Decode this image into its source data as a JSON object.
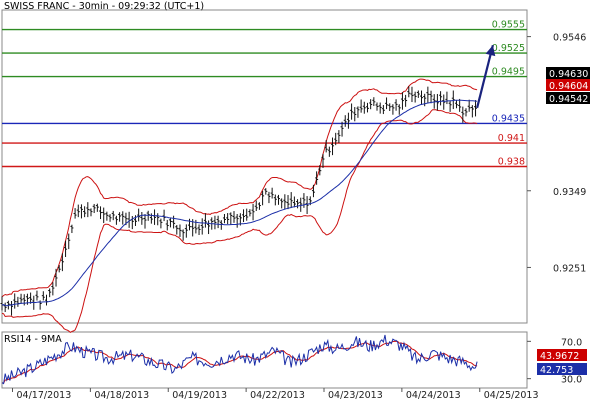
{
  "title": "SWISS FRANC - 30min - 09:29:32 (UTC+1)",
  "colors": {
    "bars": "#111111",
    "ma_blue": "#1c2fa8",
    "bollinger": "#cc1111",
    "resistance": "#2e8b22",
    "support_blue": "#1a27b8",
    "support_red": "#d01818",
    "arrow": "#1a237e",
    "frame": "#888888",
    "price_box_red": "#cc0000",
    "price_box_black": "#000000",
    "rsi_blue": "#1c2fa8",
    "rsi_red": "#cc1111"
  },
  "chart_data": {
    "type": "line",
    "title": "SWISS FRANC - 30min - 09:29:32 (UTC+1)",
    "x_tick_labels": [
      "04/17/2013",
      "04/18/2013",
      "04/19/2013",
      "04/22/2013",
      "04/23/2013",
      "04/24/2013",
      "04/25/2013"
    ],
    "y_tick_labels": [
      "0.9546",
      "0.9349",
      "0.9251"
    ],
    "ylim": [
      0.918,
      0.958
    ],
    "levels": [
      {
        "label": "0.9555",
        "value": 0.9555,
        "color": "#2e8b22"
      },
      {
        "label": "0.9525",
        "value": 0.9525,
        "color": "#2e8b22"
      },
      {
        "label": "0.9495",
        "value": 0.9495,
        "color": "#2e8b22"
      },
      {
        "label": "0.9435",
        "value": 0.9435,
        "color": "#1a27b8"
      },
      {
        "label": "0.941",
        "value": 0.941,
        "color": "#d01818"
      },
      {
        "label": "0.938",
        "value": 0.938,
        "color": "#d01818"
      }
    ],
    "price_boxes": [
      {
        "label": "0.94630",
        "value": 0.9463,
        "style": "black"
      },
      {
        "label": "0.94604",
        "value": 0.94604,
        "style": "red"
      },
      {
        "label": "0.94542",
        "value": 0.94542,
        "style": "black"
      }
    ],
    "series_anchors": [
      {
        "x": 0,
        "y": 0.9203
      },
      {
        "x": 0.05,
        "y": 0.921
      },
      {
        "x": 0.085,
        "y": 0.9208
      },
      {
        "x": 0.11,
        "y": 0.925
      },
      {
        "x": 0.14,
        "y": 0.932
      },
      {
        "x": 0.17,
        "y": 0.9327
      },
      {
        "x": 0.2,
        "y": 0.9318
      },
      {
        "x": 0.24,
        "y": 0.931
      },
      {
        "x": 0.28,
        "y": 0.9318
      },
      {
        "x": 0.32,
        "y": 0.9308
      },
      {
        "x": 0.35,
        "y": 0.9298
      },
      {
        "x": 0.38,
        "y": 0.9305
      },
      {
        "x": 0.42,
        "y": 0.9312
      },
      {
        "x": 0.45,
        "y": 0.9318
      },
      {
        "x": 0.48,
        "y": 0.9322
      },
      {
        "x": 0.5,
        "y": 0.9345
      },
      {
        "x": 0.53,
        "y": 0.9335
      },
      {
        "x": 0.56,
        "y": 0.933
      },
      {
        "x": 0.59,
        "y": 0.9337
      },
      {
        "x": 0.61,
        "y": 0.939
      },
      {
        "x": 0.64,
        "y": 0.942
      },
      {
        "x": 0.67,
        "y": 0.945
      },
      {
        "x": 0.7,
        "y": 0.946
      },
      {
        "x": 0.73,
        "y": 0.9455
      },
      {
        "x": 0.76,
        "y": 0.9458
      },
      {
        "x": 0.78,
        "y": 0.9475
      },
      {
        "x": 0.8,
        "y": 0.947
      },
      {
        "x": 0.83,
        "y": 0.9465
      },
      {
        "x": 0.86,
        "y": 0.9462
      },
      {
        "x": 0.88,
        "y": 0.945
      },
      {
        "x": 0.9,
        "y": 0.9455
      }
    ],
    "forecast_arrow": {
      "from": {
        "x": 0.905,
        "y": 0.9455
      },
      "to": {
        "x": 0.935,
        "y": 0.9535
      }
    },
    "rsi": {
      "label": "RSI14 - 9MA",
      "ylim": [
        20,
        80
      ],
      "tick_labels": [
        "70.0",
        "30.0"
      ],
      "value_boxes": [
        {
          "label": "43.9672",
          "value": 43.9672,
          "style": "red"
        },
        {
          "label": "42.753",
          "value": 42.753,
          "style": "blue"
        }
      ],
      "anchors": [
        {
          "x": 0,
          "y": 28
        },
        {
          "x": 0.06,
          "y": 42
        },
        {
          "x": 0.1,
          "y": 55
        },
        {
          "x": 0.13,
          "y": 65
        },
        {
          "x": 0.16,
          "y": 58
        },
        {
          "x": 0.2,
          "y": 52
        },
        {
          "x": 0.25,
          "y": 55
        },
        {
          "x": 0.3,
          "y": 45
        },
        {
          "x": 0.33,
          "y": 40
        },
        {
          "x": 0.36,
          "y": 52
        },
        {
          "x": 0.4,
          "y": 48
        },
        {
          "x": 0.44,
          "y": 56
        },
        {
          "x": 0.48,
          "y": 50
        },
        {
          "x": 0.52,
          "y": 60
        },
        {
          "x": 0.55,
          "y": 46
        },
        {
          "x": 0.58,
          "y": 55
        },
        {
          "x": 0.61,
          "y": 66
        },
        {
          "x": 0.64,
          "y": 62
        },
        {
          "x": 0.67,
          "y": 70
        },
        {
          "x": 0.7,
          "y": 65
        },
        {
          "x": 0.73,
          "y": 72
        },
        {
          "x": 0.76,
          "y": 66
        },
        {
          "x": 0.79,
          "y": 50
        },
        {
          "x": 0.82,
          "y": 58
        },
        {
          "x": 0.85,
          "y": 52
        },
        {
          "x": 0.88,
          "y": 48
        },
        {
          "x": 0.9,
          "y": 43
        }
      ]
    }
  }
}
